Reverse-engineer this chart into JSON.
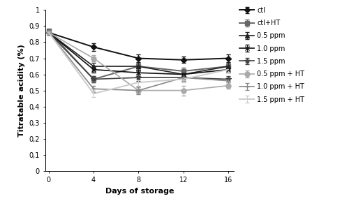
{
  "x": [
    0,
    4,
    8,
    12,
    16
  ],
  "series": [
    {
      "name": "ctl",
      "values": [
        0.86,
        0.77,
        0.7,
        0.69,
        0.7
      ],
      "errors": [
        0.01,
        0.025,
        0.025,
        0.02,
        0.025
      ],
      "color": "#111111",
      "marker": "D",
      "markersize": 4,
      "linewidth": 1.4,
      "linestyle": "-"
    },
    {
      "name": "ctl+HT",
      "values": [
        0.87,
        0.57,
        0.65,
        0.62,
        0.65
      ],
      "errors": [
        0.01,
        0.02,
        0.02,
        0.02,
        0.02
      ],
      "color": "#666666",
      "marker": "s",
      "markersize": 4,
      "linewidth": 1.4,
      "linestyle": "-"
    },
    {
      "name": "0.5 ppm",
      "values": [
        0.86,
        0.65,
        0.65,
        0.6,
        0.65
      ],
      "errors": [
        0.01,
        0.02,
        0.02,
        0.02,
        0.02
      ],
      "color": "#222222",
      "marker": "^",
      "markersize": 4,
      "linewidth": 1.2,
      "linestyle": "-"
    },
    {
      "name": "1.0 ppm",
      "values": [
        0.86,
        0.63,
        0.61,
        0.6,
        0.63
      ],
      "errors": [
        0.01,
        0.02,
        0.02,
        0.02,
        0.02
      ],
      "color": "#111111",
      "marker": "x",
      "markersize": 5,
      "linewidth": 1.2,
      "linestyle": "-"
    },
    {
      "name": "1.5 ppm",
      "values": [
        0.86,
        0.57,
        0.58,
        0.58,
        0.57
      ],
      "errors": [
        0.01,
        0.02,
        0.02,
        0.02,
        0.02
      ],
      "color": "#444444",
      "marker": "*",
      "markersize": 6,
      "linewidth": 1.2,
      "linestyle": "-"
    },
    {
      "name": "0.5 ppm + HT",
      "values": [
        0.86,
        0.7,
        0.5,
        0.5,
        0.53
      ],
      "errors": [
        0.01,
        0.02,
        0.02,
        0.03,
        0.02
      ],
      "color": "#aaaaaa",
      "marker": "o",
      "markersize": 5,
      "linewidth": 1.2,
      "linestyle": "-"
    },
    {
      "name": "1.0 ppm + HT",
      "values": [
        0.86,
        0.51,
        0.5,
        0.58,
        0.56
      ],
      "errors": [
        0.01,
        0.02,
        0.025,
        0.02,
        0.025
      ],
      "color": "#888888",
      "marker": "+",
      "markersize": 5,
      "linewidth": 1.2,
      "linestyle": "-"
    },
    {
      "name": "1.5 ppm + HT",
      "values": [
        0.86,
        0.48,
        0.55,
        0.57,
        0.63
      ],
      "errors": [
        0.01,
        0.02,
        0.02,
        0.02,
        0.02
      ],
      "color": "#cccccc",
      "marker": "None",
      "markersize": 0,
      "linewidth": 1.4,
      "linestyle": "-"
    }
  ],
  "xlabel": "Days of storage",
  "ylabel": "Titratable acidity (%)",
  "xlim": [
    -0.3,
    16.5
  ],
  "ylim": [
    0,
    1.0
  ],
  "yticks": [
    0,
    0.1,
    0.2,
    0.3,
    0.4,
    0.5,
    0.6,
    0.7,
    0.8,
    0.9,
    1
  ],
  "ytick_labels": [
    "0",
    "0,1",
    "0,2",
    "0,3",
    "0,4",
    "0,5",
    "0,6",
    "0,7",
    "0,8",
    "0,9",
    "1"
  ],
  "xticks": [
    0,
    4,
    8,
    12,
    16
  ],
  "background_color": "#ffffff",
  "tick_fontsize": 7,
  "label_fontsize": 8,
  "legend_fontsize": 7
}
